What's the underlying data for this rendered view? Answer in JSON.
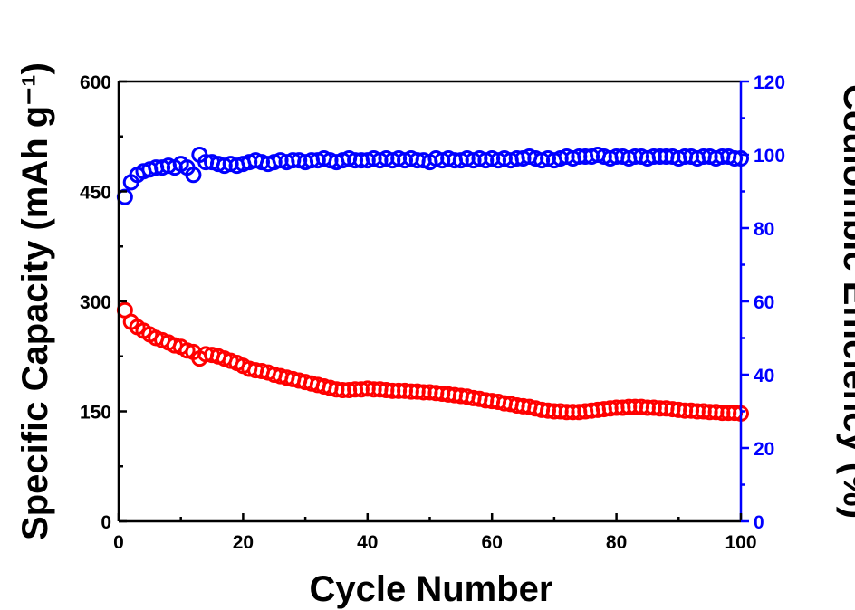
{
  "chart_data": {
    "type": "scatter",
    "title": "",
    "xlabel": "Cycle Number",
    "ylabel": "Specific Capacity (mAh g⁻¹)",
    "ylabel_right": "Coulombic Efficiency (%)",
    "xlim": [
      0,
      100
    ],
    "ylim": [
      0,
      600
    ],
    "ylim_right": [
      0,
      120
    ],
    "x_ticks": [
      "0",
      "20",
      "40",
      "60",
      "80",
      "100"
    ],
    "y_ticks": [
      "0",
      "150",
      "300",
      "450",
      "600"
    ],
    "y_ticks_right": [
      "0",
      "20",
      "40",
      "60",
      "80",
      "100",
      "120"
    ],
    "grid": false,
    "legend": "none",
    "x": [
      1,
      2,
      3,
      4,
      5,
      6,
      7,
      8,
      9,
      10,
      11,
      12,
      13,
      14,
      15,
      16,
      17,
      18,
      19,
      20,
      21,
      22,
      23,
      24,
      25,
      26,
      27,
      28,
      29,
      30,
      31,
      32,
      33,
      34,
      35,
      36,
      37,
      38,
      39,
      40,
      41,
      42,
      43,
      44,
      45,
      46,
      47,
      48,
      49,
      50,
      51,
      52,
      53,
      54,
      55,
      56,
      57,
      58,
      59,
      60,
      61,
      62,
      63,
      64,
      65,
      66,
      67,
      68,
      69,
      70,
      71,
      72,
      73,
      74,
      75,
      76,
      77,
      78,
      79,
      80,
      81,
      82,
      83,
      84,
      85,
      86,
      87,
      88,
      89,
      90,
      91,
      92,
      93,
      94,
      95,
      96,
      97,
      98,
      99,
      100
    ],
    "series": [
      {
        "axis": "left",
        "color": "#ff0000",
        "values": [
          288,
          272,
          265,
          260,
          255,
          250,
          247,
          244,
          240,
          238,
          233,
          231,
          222,
          228,
          227,
          225,
          222,
          219,
          216,
          212,
          208,
          206,
          205,
          203,
          200,
          198,
          196,
          194,
          192,
          190,
          188,
          186,
          184,
          182,
          180,
          179,
          179,
          180,
          180,
          181,
          180,
          180,
          179,
          178,
          178,
          178,
          177,
          177,
          176,
          176,
          175,
          174,
          173,
          172,
          171,
          170,
          168,
          167,
          165,
          164,
          163,
          161,
          160,
          158,
          157,
          156,
          154,
          152,
          151,
          150,
          150,
          149,
          149,
          149,
          150,
          151,
          152,
          153,
          154,
          155,
          155,
          156,
          156,
          156,
          155,
          155,
          154,
          154,
          153,
          152,
          151,
          151,
          150,
          150,
          149,
          149,
          148,
          148,
          148,
          147
        ]
      },
      {
        "axis": "right",
        "color": "#0000ff",
        "values": [
          88.5,
          92.5,
          94.5,
          95.5,
          96.0,
          96.5,
          96.5,
          97.0,
          96.5,
          97.5,
          96.5,
          94.5,
          100.0,
          98.0,
          98.0,
          97.5,
          97.0,
          97.5,
          97.0,
          97.5,
          98.0,
          98.5,
          98.0,
          97.5,
          98.0,
          98.5,
          98.0,
          98.5,
          98.5,
          98.0,
          98.5,
          98.5,
          99.0,
          98.5,
          98.0,
          98.5,
          99.0,
          98.5,
          98.5,
          98.5,
          99.0,
          98.5,
          99.0,
          98.5,
          99.0,
          98.5,
          99.0,
          98.5,
          98.5,
          98.0,
          99.0,
          98.5,
          99.0,
          98.5,
          98.5,
          99.0,
          98.5,
          99.0,
          98.5,
          99.0,
          98.5,
          99.0,
          98.5,
          99.0,
          99.0,
          99.5,
          99.0,
          98.5,
          99.0,
          98.5,
          99.0,
          99.5,
          99.0,
          99.5,
          99.5,
          99.5,
          100.0,
          99.5,
          99.0,
          99.5,
          99.5,
          99.0,
          99.5,
          99.5,
          99.0,
          99.5,
          99.5,
          99.5,
          99.5,
          99.0,
          99.5,
          99.5,
          99.0,
          99.5,
          99.5,
          99.0,
          99.5,
          99.5,
          99.0,
          99.0
        ]
      }
    ]
  }
}
